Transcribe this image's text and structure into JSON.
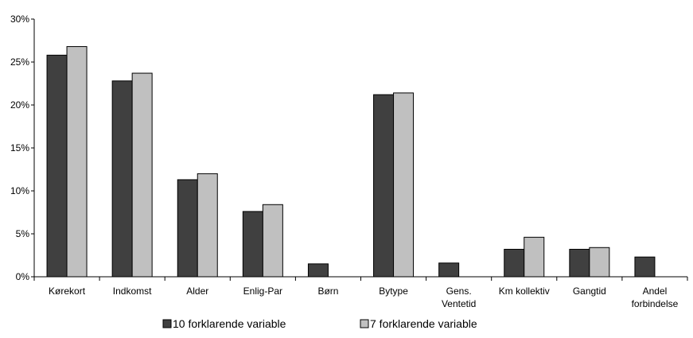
{
  "chart_data": {
    "type": "bar",
    "categories": [
      [
        "Kørekort"
      ],
      [
        "Indkomst"
      ],
      [
        "Alder"
      ],
      [
        "Enlig-Par"
      ],
      [
        "Børn"
      ],
      [
        "Bytype"
      ],
      [
        "Gens.",
        "Ventetid"
      ],
      [
        "Km kollektiv"
      ],
      [
        "Gangtid"
      ],
      [
        "Andel",
        "forbindelse"
      ]
    ],
    "series": [
      {
        "name": "10 forklarende variable",
        "color": "#404040",
        "values": [
          25.8,
          22.8,
          11.3,
          7.6,
          1.5,
          21.2,
          1.6,
          3.2,
          3.2,
          2.3
        ]
      },
      {
        "name": "7 forklarende variable",
        "color": "#c0c0c0",
        "values": [
          26.8,
          23.7,
          12.0,
          8.4,
          null,
          21.4,
          null,
          4.6,
          3.4,
          null
        ]
      }
    ],
    "ylim": [
      0,
      30
    ],
    "yticks": [
      0,
      5,
      10,
      15,
      20,
      25,
      30
    ],
    "ytick_labels": [
      "0%",
      "5%",
      "10%",
      "15%",
      "20%",
      "25%",
      "30%"
    ],
    "legend_position": "bottom",
    "grid": false
  }
}
